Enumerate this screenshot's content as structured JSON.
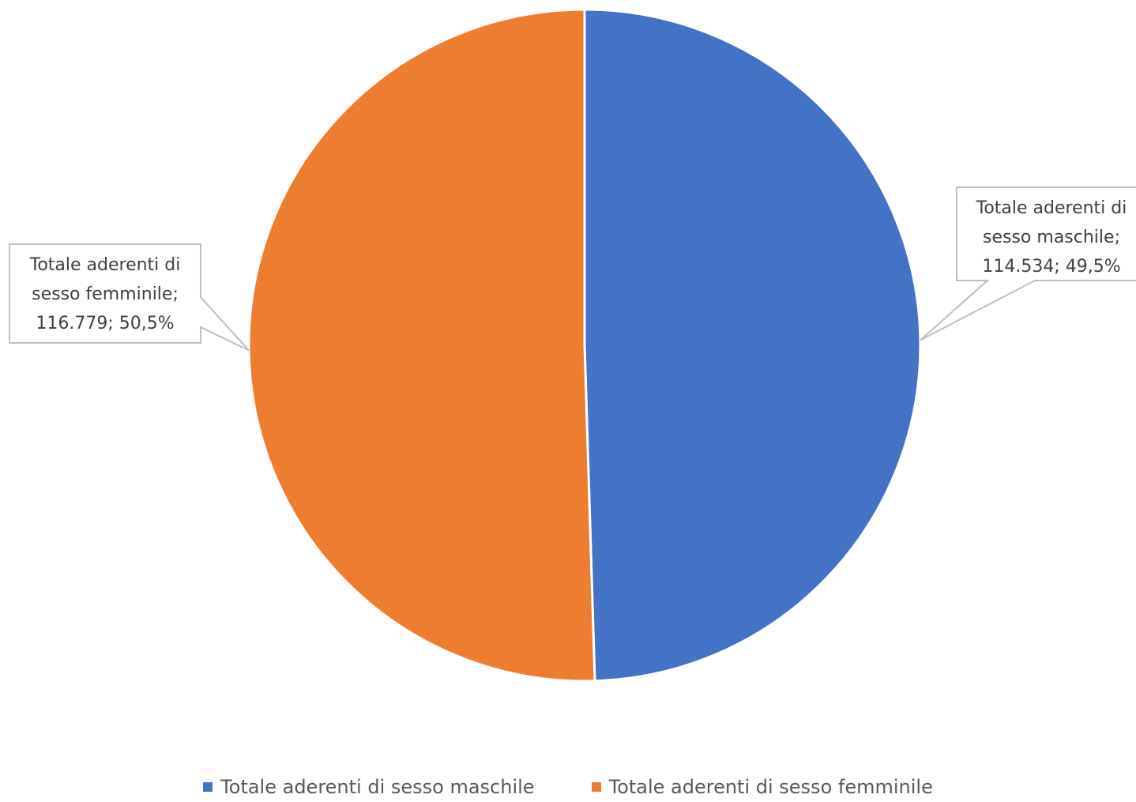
{
  "chart_data": {
    "type": "pie",
    "title": "",
    "series": [
      {
        "name": "",
        "slices": [
          {
            "label": "Totale aderenti di sesso maschile",
            "value": 114534,
            "percent": 49.5,
            "color": "#4472c4",
            "data_label_lines": [
              "Totale aderenti di",
              "sesso maschile;",
              "114.534; 49,5%"
            ]
          },
          {
            "label": "Totale aderenti di sesso femminile",
            "value": 116779,
            "percent": 50.5,
            "color": "#ed7d31",
            "data_label_lines": [
              "Totale aderenti di",
              "sesso femminile;",
              "116.779; 50,5%"
            ]
          }
        ]
      }
    ],
    "legend_position": "bottom"
  },
  "legend": {
    "items": [
      {
        "label": "Totale aderenti di sesso maschile",
        "color": "#4472c4"
      },
      {
        "label": "Totale aderenti di sesso femminile",
        "color": "#ed7d31"
      }
    ]
  }
}
